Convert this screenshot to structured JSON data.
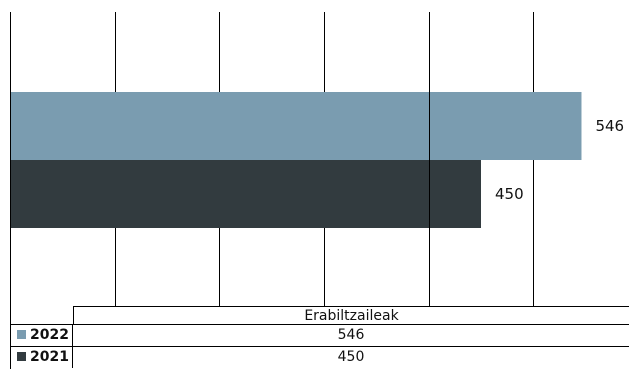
{
  "colors": {
    "2022": "#7a9cb0",
    "2021": "#323b3f"
  },
  "chart_data": {
    "type": "bar",
    "orientation": "horizontal",
    "categories": [
      "Erabiltzaileak"
    ],
    "series": [
      {
        "name": "2022",
        "values": [
          546
        ],
        "color": "#7a9cb0"
      },
      {
        "name": "2021",
        "values": [
          450
        ],
        "color": "#323b3f"
      }
    ],
    "data_labels": [
      "546",
      "450"
    ],
    "xlim": [
      0,
      600
    ],
    "grid": true,
    "legend": "table-below"
  },
  "table": {
    "header": "Erabiltzaileak",
    "rows": [
      {
        "label": "2022",
        "value": "546"
      },
      {
        "label": "2021",
        "value": "450"
      }
    ]
  }
}
